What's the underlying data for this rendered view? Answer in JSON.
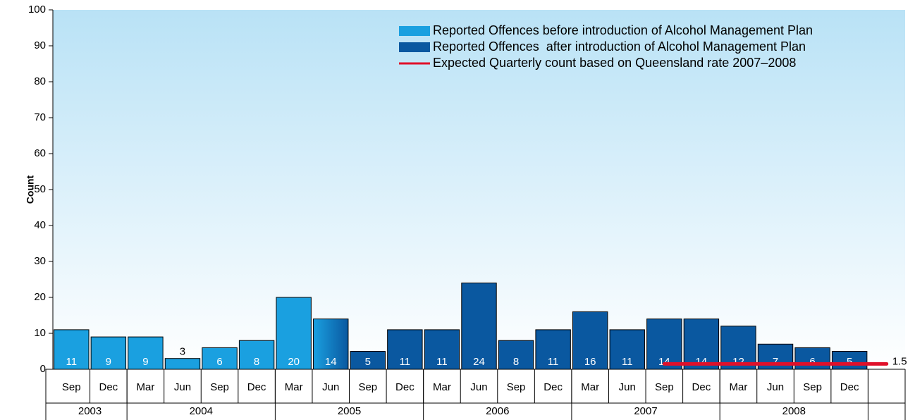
{
  "chart_data": {
    "type": "bar",
    "ylabel": "Count",
    "ylim": [
      0,
      100
    ],
    "yticks": [
      0,
      10,
      20,
      30,
      40,
      50,
      60,
      70,
      80,
      90,
      100
    ],
    "categories": [
      "Sep",
      "Dec",
      "Mar",
      "Jun",
      "Sep",
      "Dec",
      "Mar",
      "Jun",
      "Sep",
      "Dec",
      "Mar",
      "Jun",
      "Sep",
      "Dec",
      "Mar",
      "Jun",
      "Sep",
      "Dec",
      "Mar",
      "Jun",
      "Sep",
      "Dec",
      null
    ],
    "years": [
      "2003",
      "2004",
      "2005",
      "2006",
      "2007",
      "2008"
    ],
    "year_spans": [
      2,
      4,
      4,
      4,
      4,
      4
    ],
    "legend_position": "upper right",
    "series": [
      {
        "name": "Reported Offences before introduction of Alcohol Management Plan",
        "color": "#1aa0e0",
        "values": [
          11,
          9,
          9,
          3,
          6,
          8,
          20,
          null,
          null,
          null,
          null,
          null,
          null,
          null,
          null,
          null,
          null,
          null,
          null,
          null,
          null,
          null,
          null
        ]
      },
      {
        "name": "Reported Offences  after introduction of Alcohol Management Plan",
        "color": "#0a58a0",
        "values": [
          null,
          null,
          null,
          null,
          null,
          null,
          null,
          14,
          5,
          11,
          11,
          24,
          8,
          11,
          16,
          11,
          14,
          14,
          12,
          7,
          6,
          5,
          null
        ]
      },
      {
        "name": "Expected Quarterly count based on Queensland rate 2007–2008",
        "color": "#e0102a",
        "type": "line",
        "values": [
          null,
          null,
          null,
          null,
          null,
          null,
          null,
          null,
          null,
          null,
          null,
          null,
          null,
          null,
          null,
          null,
          1.5,
          1.5,
          1.5,
          1.5,
          1.5,
          1.5,
          1.5
        ]
      }
    ]
  }
}
